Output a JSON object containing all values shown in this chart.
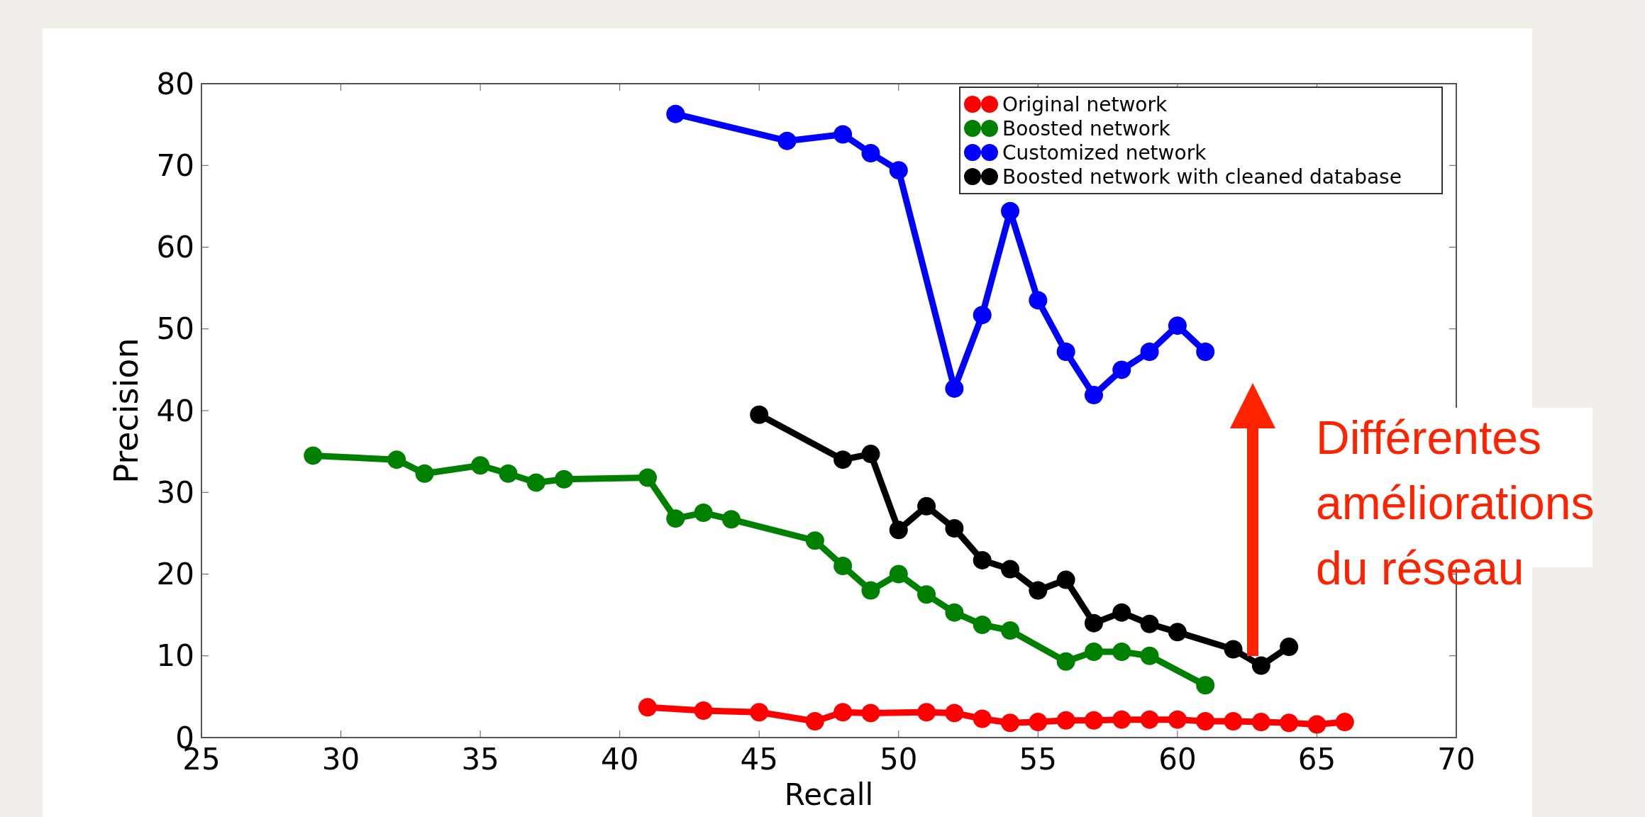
{
  "chart_data": {
    "type": "line",
    "xlabel": "Recall",
    "ylabel": "Precision",
    "xlim": [
      25,
      70
    ],
    "xticks": [
      25,
      30,
      35,
      40,
      45,
      50,
      55,
      60,
      65,
      70
    ],
    "ylim": [
      0,
      80
    ],
    "yticks": [
      0,
      10,
      20,
      30,
      40,
      50,
      60,
      70,
      80
    ],
    "legend": "top right",
    "marker": "circle",
    "grid": false,
    "series": [
      {
        "name": "Original network",
        "color": "#ff0000",
        "x": [
          41,
          43,
          45,
          47,
          48,
          49,
          51,
          52,
          53,
          54,
          55,
          56,
          57,
          58,
          59,
          60,
          61,
          62,
          63,
          64,
          65,
          66
        ],
        "values": [
          3.7,
          3.3,
          3.1,
          2.0,
          3.1,
          3.0,
          3.1,
          3.0,
          2.3,
          1.8,
          1.9,
          2.1,
          2.1,
          2.2,
          2.2,
          2.2,
          2.0,
          2.0,
          1.9,
          1.8,
          1.6,
          1.9
        ]
      },
      {
        "name": "Boosted network",
        "color": "#008000",
        "x": [
          29,
          32,
          33,
          35,
          36,
          37,
          38,
          41,
          42,
          43,
          44,
          47,
          48,
          49,
          50,
          51,
          52,
          53,
          54,
          56,
          57,
          58,
          59,
          61
        ],
        "values": [
          34.5,
          34,
          32.3,
          33.3,
          32.3,
          31.2,
          31.6,
          31.8,
          26.8,
          27.5,
          26.7,
          24.1,
          21,
          18,
          20,
          17.5,
          15.3,
          13.8,
          13.1,
          9.3,
          10.5,
          10.5,
          10,
          6.4
        ]
      },
      {
        "name": "Customized network",
        "color": "#0000ff",
        "x": [
          42,
          46,
          48,
          49,
          50,
          52,
          53,
          54,
          55,
          56,
          57,
          58,
          59,
          60,
          61
        ],
        "values": [
          76.3,
          73,
          73.8,
          71.5,
          69.4,
          42.7,
          51.7,
          64.4,
          53.5,
          47.2,
          41.9,
          45,
          47.2,
          50.4,
          47.2
        ]
      },
      {
        "name": "Boosted network with cleaned database",
        "color": "#000000",
        "x": [
          45,
          48,
          49,
          50,
          51,
          52,
          53,
          54,
          55,
          56,
          57,
          58,
          59,
          60,
          62,
          63,
          64
        ],
        "values": [
          39.5,
          34,
          34.7,
          25.4,
          28.3,
          25.6,
          21.7,
          20.6,
          18,
          19.3,
          14,
          15.3,
          13.9,
          12.9,
          10.8,
          8.8,
          11.1
        ]
      }
    ],
    "annotations": [
      "Différentes améliorations du réseau"
    ]
  }
}
